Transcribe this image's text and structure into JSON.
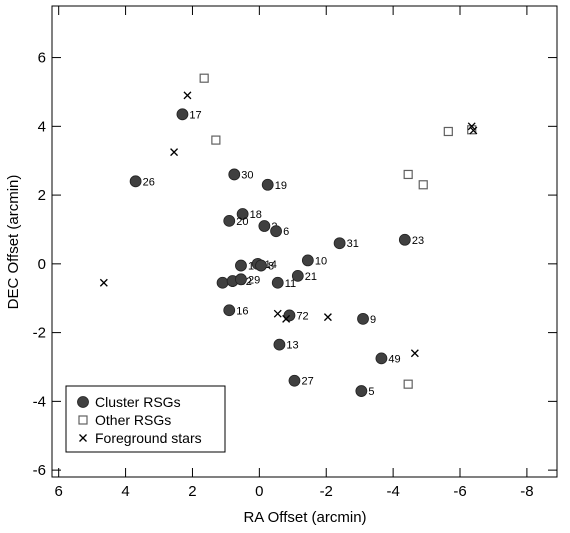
{
  "chart_data": {
    "type": "scatter",
    "xlabel": "RA Offset (arcmin)",
    "ylabel": "DEC Offset (arcmin)",
    "xlim": [
      6.2,
      -8.9
    ],
    "ylim": [
      -6.2,
      7.5
    ],
    "x_inverted": true,
    "xticks": [
      6,
      4,
      2,
      0,
      -2,
      -4,
      -6,
      -8
    ],
    "xtick_labels": [
      "6",
      "4",
      "2",
      "0",
      "-2",
      "-4",
      "-6",
      "-8"
    ],
    "yticks": [
      -6,
      -4,
      -2,
      0,
      2,
      4,
      6
    ],
    "ytick_labels": [
      "-6",
      "-4",
      "-2",
      "0",
      "2",
      "4",
      "6"
    ],
    "grid": false,
    "legend_position": "bottom-left",
    "series": [
      {
        "name": "Cluster RSGs",
        "marker": "filled-circle",
        "color": "#404040",
        "points": [
          {
            "x": 2.3,
            "y": 4.35,
            "label": "17"
          },
          {
            "x": 0.75,
            "y": 2.6,
            "label": "30"
          },
          {
            "x": -0.25,
            "y": 2.3,
            "label": "19"
          },
          {
            "x": 3.7,
            "y": 2.4,
            "label": "26"
          },
          {
            "x": 0.5,
            "y": 1.45,
            "label": "18"
          },
          {
            "x": 0.9,
            "y": 1.25,
            "label": "20"
          },
          {
            "x": -0.15,
            "y": 1.1,
            "label": "2"
          },
          {
            "x": -0.5,
            "y": 0.95,
            "label": "6"
          },
          {
            "x": -2.4,
            "y": 0.6,
            "label": "31"
          },
          {
            "x": -4.35,
            "y": 0.7,
            "label": "23"
          },
          {
            "x": -1.45,
            "y": 0.1,
            "label": "10"
          },
          {
            "x": 0.55,
            "y": -0.05,
            "label": "15"
          },
          {
            "x": 0.05,
            "y": 0.0,
            "label": "14"
          },
          {
            "x": -0.05,
            "y": -0.05,
            "label": "8"
          },
          {
            "x": -1.15,
            "y": -0.35,
            "label": "21"
          },
          {
            "x": 1.1,
            "y": -0.55,
            "label": "3"
          },
          {
            "x": 0.8,
            "y": -0.5,
            "label": "52"
          },
          {
            "x": 0.55,
            "y": -0.45,
            "label": "29"
          },
          {
            "x": -0.55,
            "y": -0.55,
            "label": "11"
          },
          {
            "x": 0.9,
            "y": -1.35,
            "label": "16"
          },
          {
            "x": -0.9,
            "y": -1.5,
            "label": "72"
          },
          {
            "x": -0.6,
            "y": -2.35,
            "label": "13"
          },
          {
            "x": -3.1,
            "y": -1.6,
            "label": "9"
          },
          {
            "x": -3.65,
            "y": -2.75,
            "label": "49"
          },
          {
            "x": -1.05,
            "y": -3.4,
            "label": "27"
          },
          {
            "x": -3.05,
            "y": -3.7,
            "label": "5"
          }
        ]
      },
      {
        "name": "Other RSGs",
        "marker": "open-square",
        "color": "#606060",
        "points": [
          {
            "x": 1.65,
            "y": 5.4
          },
          {
            "x": 1.3,
            "y": 3.6
          },
          {
            "x": -4.45,
            "y": 2.6
          },
          {
            "x": -4.9,
            "y": 2.3
          },
          {
            "x": -5.65,
            "y": 3.85
          },
          {
            "x": -6.35,
            "y": 3.9
          },
          {
            "x": -4.45,
            "y": -3.5
          }
        ]
      },
      {
        "name": "Foreground stars",
        "marker": "x",
        "color": "#000000",
        "points": [
          {
            "x": 2.15,
            "y": 4.9
          },
          {
            "x": 2.55,
            "y": 3.25
          },
          {
            "x": 4.65,
            "y": -0.55
          },
          {
            "x": -0.55,
            "y": -1.45
          },
          {
            "x": -0.8,
            "y": -1.6
          },
          {
            "x": -2.05,
            "y": -1.55
          },
          {
            "x": -4.65,
            "y": -2.6
          },
          {
            "x": -6.35,
            "y": 4.0
          },
          {
            "x": -6.4,
            "y": 3.88
          }
        ]
      }
    ]
  }
}
